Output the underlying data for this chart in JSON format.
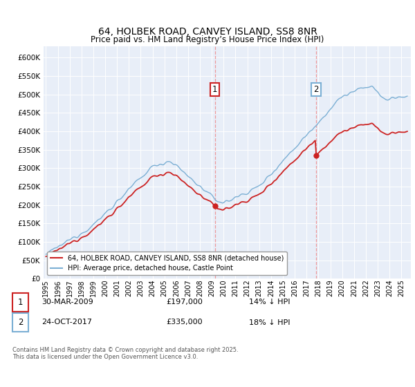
{
  "title": "64, HOLBEK ROAD, CANVEY ISLAND, SS8 8NR",
  "subtitle": "Price paid vs. HM Land Registry’s House Price Index (HPI)",
  "ytick_vals": [
    0,
    50000,
    100000,
    150000,
    200000,
    250000,
    300000,
    350000,
    400000,
    450000,
    500000,
    550000,
    600000
  ],
  "ylim": [
    0,
    630000
  ],
  "sale1_x": 2009.25,
  "sale1_price": 197000,
  "sale2_x": 2017.8,
  "sale2_price": 335000,
  "legend1": "64, HOLBEK ROAD, CANVEY ISLAND, SS8 8NR (detached house)",
  "legend2": "HPI: Average price, detached house, Castle Point",
  "footer1": "Contains HM Land Registry data © Crown copyright and database right 2025.",
  "footer2": "This data is licensed under the Open Government Licence v3.0.",
  "row1_date": "30-MAR-2009",
  "row1_price": "£197,000",
  "row1_hpi": "14% ↓ HPI",
  "row2_date": "24-OCT-2017",
  "row2_price": "£335,000",
  "row2_hpi": "18% ↓ HPI",
  "hpi_color": "#7bafd4",
  "sale_color": "#cc2222",
  "vline_color": "#ee8888",
  "bg_color": "#e8eef8",
  "xmin": 1994.8,
  "xmax": 2025.8
}
